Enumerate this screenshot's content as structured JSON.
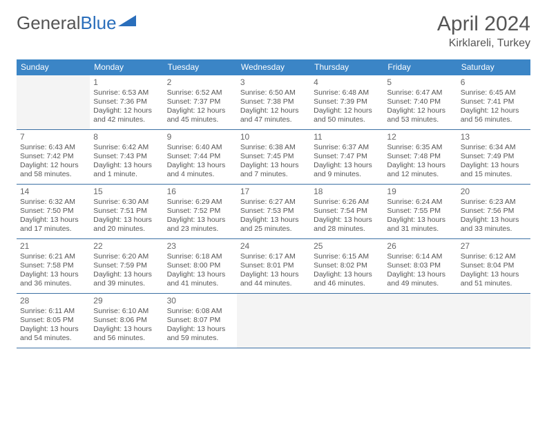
{
  "brand": {
    "word1": "General",
    "word2": "Blue"
  },
  "title": "April 2024",
  "location": "Kirklareli, Turkey",
  "colors": {
    "header_bg": "#3b85c6",
    "header_text": "#ffffff",
    "week_divider": "#3b6fa3",
    "blank_bg": "#f4f4f4",
    "body_text": "#555555",
    "logo_blue": "#2a6ebb"
  },
  "weekdays": [
    "Sunday",
    "Monday",
    "Tuesday",
    "Wednesday",
    "Thursday",
    "Friday",
    "Saturday"
  ],
  "layout": {
    "first_weekday_index": 1,
    "days_in_month": 30
  },
  "days": {
    "1": {
      "sunrise": "6:53 AM",
      "sunset": "7:36 PM",
      "daylight": "12 hours and 42 minutes."
    },
    "2": {
      "sunrise": "6:52 AM",
      "sunset": "7:37 PM",
      "daylight": "12 hours and 45 minutes."
    },
    "3": {
      "sunrise": "6:50 AM",
      "sunset": "7:38 PM",
      "daylight": "12 hours and 47 minutes."
    },
    "4": {
      "sunrise": "6:48 AM",
      "sunset": "7:39 PM",
      "daylight": "12 hours and 50 minutes."
    },
    "5": {
      "sunrise": "6:47 AM",
      "sunset": "7:40 PM",
      "daylight": "12 hours and 53 minutes."
    },
    "6": {
      "sunrise": "6:45 AM",
      "sunset": "7:41 PM",
      "daylight": "12 hours and 56 minutes."
    },
    "7": {
      "sunrise": "6:43 AM",
      "sunset": "7:42 PM",
      "daylight": "12 hours and 58 minutes."
    },
    "8": {
      "sunrise": "6:42 AM",
      "sunset": "7:43 PM",
      "daylight": "13 hours and 1 minute."
    },
    "9": {
      "sunrise": "6:40 AM",
      "sunset": "7:44 PM",
      "daylight": "13 hours and 4 minutes."
    },
    "10": {
      "sunrise": "6:38 AM",
      "sunset": "7:45 PM",
      "daylight": "13 hours and 7 minutes."
    },
    "11": {
      "sunrise": "6:37 AM",
      "sunset": "7:47 PM",
      "daylight": "13 hours and 9 minutes."
    },
    "12": {
      "sunrise": "6:35 AM",
      "sunset": "7:48 PM",
      "daylight": "13 hours and 12 minutes."
    },
    "13": {
      "sunrise": "6:34 AM",
      "sunset": "7:49 PM",
      "daylight": "13 hours and 15 minutes."
    },
    "14": {
      "sunrise": "6:32 AM",
      "sunset": "7:50 PM",
      "daylight": "13 hours and 17 minutes."
    },
    "15": {
      "sunrise": "6:30 AM",
      "sunset": "7:51 PM",
      "daylight": "13 hours and 20 minutes."
    },
    "16": {
      "sunrise": "6:29 AM",
      "sunset": "7:52 PM",
      "daylight": "13 hours and 23 minutes."
    },
    "17": {
      "sunrise": "6:27 AM",
      "sunset": "7:53 PM",
      "daylight": "13 hours and 25 minutes."
    },
    "18": {
      "sunrise": "6:26 AM",
      "sunset": "7:54 PM",
      "daylight": "13 hours and 28 minutes."
    },
    "19": {
      "sunrise": "6:24 AM",
      "sunset": "7:55 PM",
      "daylight": "13 hours and 31 minutes."
    },
    "20": {
      "sunrise": "6:23 AM",
      "sunset": "7:56 PM",
      "daylight": "13 hours and 33 minutes."
    },
    "21": {
      "sunrise": "6:21 AM",
      "sunset": "7:58 PM",
      "daylight": "13 hours and 36 minutes."
    },
    "22": {
      "sunrise": "6:20 AM",
      "sunset": "7:59 PM",
      "daylight": "13 hours and 39 minutes."
    },
    "23": {
      "sunrise": "6:18 AM",
      "sunset": "8:00 PM",
      "daylight": "13 hours and 41 minutes."
    },
    "24": {
      "sunrise": "6:17 AM",
      "sunset": "8:01 PM",
      "daylight": "13 hours and 44 minutes."
    },
    "25": {
      "sunrise": "6:15 AM",
      "sunset": "8:02 PM",
      "daylight": "13 hours and 46 minutes."
    },
    "26": {
      "sunrise": "6:14 AM",
      "sunset": "8:03 PM",
      "daylight": "13 hours and 49 minutes."
    },
    "27": {
      "sunrise": "6:12 AM",
      "sunset": "8:04 PM",
      "daylight": "13 hours and 51 minutes."
    },
    "28": {
      "sunrise": "6:11 AM",
      "sunset": "8:05 PM",
      "daylight": "13 hours and 54 minutes."
    },
    "29": {
      "sunrise": "6:10 AM",
      "sunset": "8:06 PM",
      "daylight": "13 hours and 56 minutes."
    },
    "30": {
      "sunrise": "6:08 AM",
      "sunset": "8:07 PM",
      "daylight": "13 hours and 59 minutes."
    }
  },
  "labels": {
    "sunrise_prefix": "Sunrise: ",
    "sunset_prefix": "Sunset: ",
    "daylight_prefix": "Daylight: "
  }
}
